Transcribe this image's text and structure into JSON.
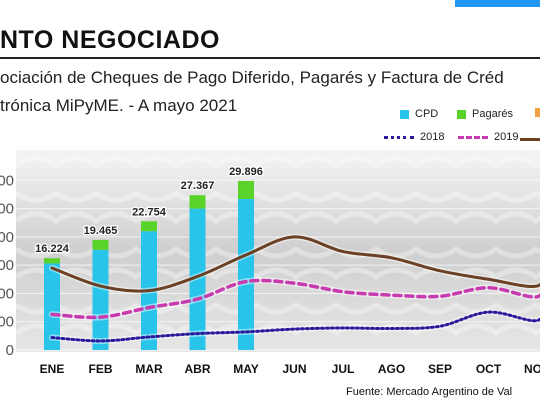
{
  "header": {
    "headline": "NTO NEGOCIADO",
    "subtitle_line1": "ociación de Cheques de Pago Diferido, Pagarés y Factura de Créd",
    "subtitle_line2": "trónica MiPyME. - A mayo 2021",
    "source": "Fuente: Mercado Argentino de Val"
  },
  "colors": {
    "cpd": "#29c4ea",
    "pagares": "#59d22a",
    "third_bar": "#f0a040",
    "line_2018": "#2a1a9c",
    "line_2019": "#c83ab0",
    "line_2020": "#6b4024",
    "accent": "#2196f3"
  },
  "chart_data": {
    "type": "bar",
    "categories": [
      "ENE",
      "FEB",
      "MAR",
      "ABR",
      "MAY",
      "JUN",
      "JUL",
      "AGO",
      "SEP",
      "OCT",
      "NOV"
    ],
    "ylim": [
      0,
      35000
    ],
    "series": [
      {
        "name": "CPD",
        "kind": "bar",
        "values": [
          15300,
          17700,
          21000,
          25000,
          26700,
          null,
          null,
          null,
          null,
          null,
          null
        ]
      },
      {
        "name": "Pagarés",
        "kind": "bar",
        "values": [
          924,
          1765,
          1754,
          2367,
          3196,
          null,
          null,
          null,
          null,
          null,
          null
        ]
      },
      {
        "name": "2018",
        "kind": "line",
        "values": [
          2200,
          1600,
          2300,
          2900,
          3200,
          3700,
          3900,
          3800,
          4200,
          6700,
          5200
        ]
      },
      {
        "name": "2019",
        "kind": "line",
        "values": [
          6300,
          5800,
          7500,
          9000,
          12100,
          11800,
          10300,
          9700,
          9500,
          11000,
          9400
        ]
      },
      {
        "name": "",
        "kind": "line",
        "values": [
          14500,
          11300,
          10500,
          13000,
          16800,
          20000,
          17400,
          16300,
          14000,
          12500,
          11300
        ]
      }
    ],
    "totals": [
      "16.224",
      "19.465",
      "22.754",
      "27.367",
      "29.896"
    ],
    "y_ticks_visible": [
      "00",
      "00",
      "00",
      "00",
      "00",
      "00",
      "0"
    ],
    "grid": true,
    "legend": "top"
  }
}
